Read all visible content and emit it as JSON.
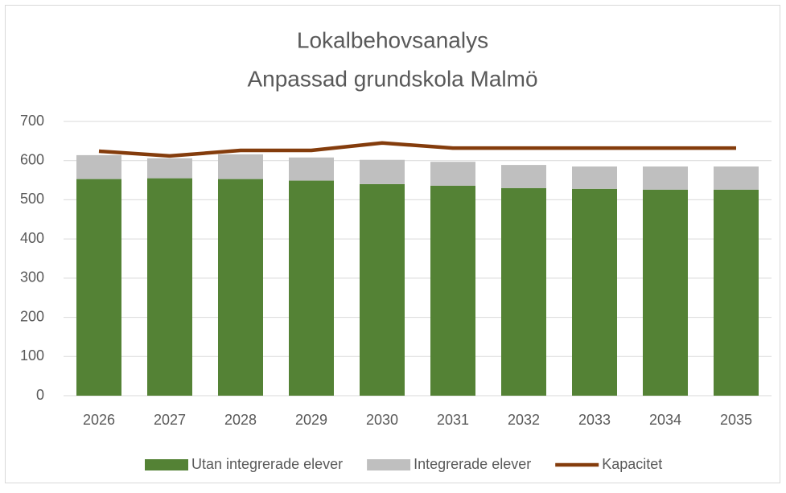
{
  "chart_data": {
    "type": "stacked_bar_line",
    "title": [
      "Lokalbehovsanalys",
      "Anpassad grundskola Malmö"
    ],
    "categories": [
      "2026",
      "2027",
      "2028",
      "2029",
      "2030",
      "2031",
      "2032",
      "2033",
      "2034",
      "2035"
    ],
    "series": [
      {
        "name": "Utan integrerade elever",
        "color": "#548235",
        "kind": "bar",
        "values": [
          553,
          555,
          553,
          549,
          540,
          536,
          530,
          528,
          526,
          526
        ]
      },
      {
        "name": "Integrerade elever",
        "color": "#bfbfbf",
        "kind": "bar",
        "values": [
          61,
          51,
          63,
          59,
          62,
          61,
          59,
          57,
          59,
          59
        ]
      },
      {
        "name": "Kapacitet",
        "color": "#843c0c",
        "kind": "line",
        "values": [
          624,
          612,
          626,
          626,
          645,
          632,
          632,
          632,
          632,
          632
        ]
      }
    ],
    "ylim": [
      0,
      700
    ],
    "yticks": [
      0,
      100,
      200,
      300,
      400,
      500,
      600,
      700
    ],
    "grid": true,
    "legend": "bottom"
  }
}
